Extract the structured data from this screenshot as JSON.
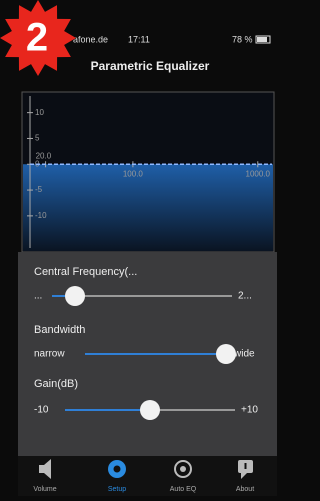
{
  "badge": {
    "label": "2"
  },
  "status_bar": {
    "carrier": "afone.de",
    "time": "17:11",
    "battery": "78 %"
  },
  "header": {
    "title": "Parametric Equalizer"
  },
  "graph": {
    "log_x": true,
    "xlim": [
      15,
      1300
    ],
    "ylim": [
      -17,
      14
    ],
    "yticks": [
      10,
      5,
      0,
      -5,
      -10
    ],
    "xticks": [
      {
        "value": 20,
        "label": "20.0"
      },
      {
        "value": 100,
        "label": "100.0"
      },
      {
        "value": 1000,
        "label": "1000.0"
      }
    ],
    "x": [
      15,
      1300
    ],
    "values": [
      0,
      0
    ],
    "color": "#8fb8ff"
  },
  "controls": [
    {
      "label": "Central Frequency(...",
      "min_label": "...",
      "max_label": "2..."
    },
    {
      "label": "Bandwidth",
      "min_label": "narrow",
      "max_label": "wide"
    },
    {
      "label": "Gain(dB)",
      "min_label": "-10",
      "max_label": "+10"
    }
  ],
  "tabs": [
    {
      "label": "Volume"
    },
    {
      "label": "Setup"
    },
    {
      "label": "Auto EQ"
    },
    {
      "label": "About"
    }
  ]
}
